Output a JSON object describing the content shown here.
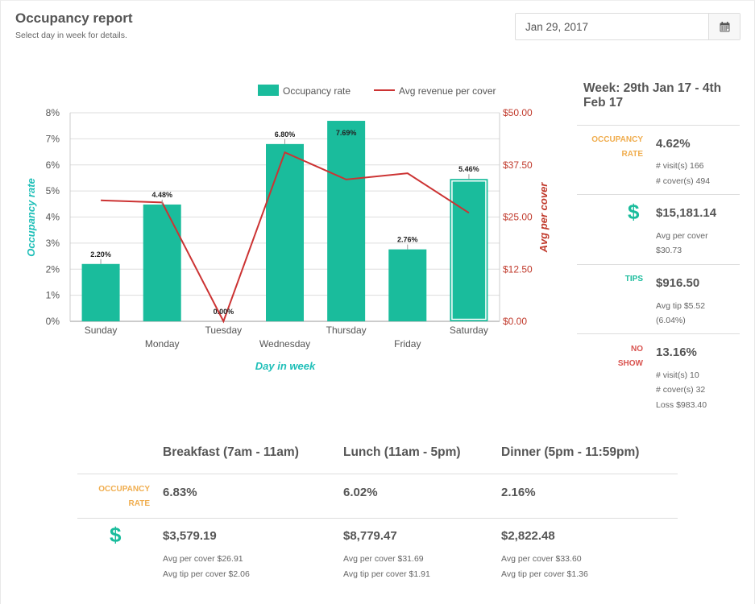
{
  "header": {
    "title": "Occupancy report",
    "subtitle": "Select day in week for details."
  },
  "date_picker": {
    "value": "Jan 29, 2017",
    "button_icon": "calendar-icon"
  },
  "chart_data": {
    "type": "bar",
    "categories": [
      "Sunday",
      "Monday",
      "Tuesday",
      "Wednesday",
      "Thursday",
      "Friday",
      "Saturday"
    ],
    "series": [
      {
        "name": "Occupancy rate",
        "kind": "bar",
        "axis": "left",
        "values": [
          2.2,
          4.48,
          0.0,
          6.8,
          7.69,
          2.76,
          5.46
        ],
        "labels": [
          "2.20%",
          "4.48%",
          "0.00%",
          "6.80%",
          "7.69%",
          "2.76%",
          "5.46%"
        ]
      },
      {
        "name": "Avg revenue per cover",
        "kind": "line",
        "axis": "right",
        "values": [
          29.0,
          28.5,
          0.0,
          40.5,
          34.0,
          35.5,
          26.0
        ]
      }
    ],
    "xlabel": "Day in week",
    "ylabel_left": "Occupancy rate",
    "ylabel_right": "Avg per cover",
    "ylim_left": [
      0,
      8
    ],
    "ylim_right": [
      0,
      50
    ],
    "yticks_left": [
      "0%",
      "1%",
      "2%",
      "3%",
      "4%",
      "5%",
      "6%",
      "7%",
      "8%"
    ],
    "yticks_right": [
      "$0.00",
      "$12.50",
      "$25.00",
      "$37.50",
      "$50.00"
    ],
    "legend_position": "top-right",
    "grid": true,
    "selected_category": "Saturday",
    "colors": {
      "bar": "#1abc9c",
      "line": "#cc3333",
      "left_axis": "#1fbfb8",
      "right_axis": "#c0392b"
    }
  },
  "summary": {
    "week_title": "Week: 29th Jan 17 - 4th Feb 17",
    "occupancy": {
      "label_line1": "OCCUPANCY",
      "label_line2": "RATE",
      "value": "4.62%",
      "visits": "# visit(s) 166",
      "covers": "# cover(s) 494"
    },
    "revenue": {
      "icon": "dollar-icon",
      "value": "$15,181.14",
      "avg_label": "Avg per cover",
      "avg_value": "$30.73"
    },
    "tips": {
      "label": "TIPS",
      "value": "$916.50",
      "avg": "Avg tip $5.52",
      "pct": "(6.04%)"
    },
    "no_show": {
      "label_line1": "NO",
      "label_line2": "SHOW",
      "value": "13.16%",
      "visits": "# visit(s) 10",
      "covers": "# cover(s) 32",
      "loss": "Loss $983.40"
    }
  },
  "breakdown": {
    "occupancy_label_line1": "OCCUPANCY",
    "occupancy_label_line2": "RATE",
    "revenue_icon": "dollar-icon",
    "meals": [
      {
        "name": "Breakfast (7am - 11am)",
        "occupancy": "6.83%",
        "revenue": "$3,579.19",
        "avg_cover": "Avg per cover $26.91",
        "avg_tip": "Avg tip per cover $2.06"
      },
      {
        "name": "Lunch (11am - 5pm)",
        "occupancy": "6.02%",
        "revenue": "$8,779.47",
        "avg_cover": "Avg per cover $31.69",
        "avg_tip": "Avg tip per cover $1.91"
      },
      {
        "name": "Dinner (5pm - 11:59pm)",
        "occupancy": "2.16%",
        "revenue": "$2,822.48",
        "avg_cover": "Avg per cover $33.60",
        "avg_tip": "Avg tip per cover $1.36"
      }
    ]
  }
}
